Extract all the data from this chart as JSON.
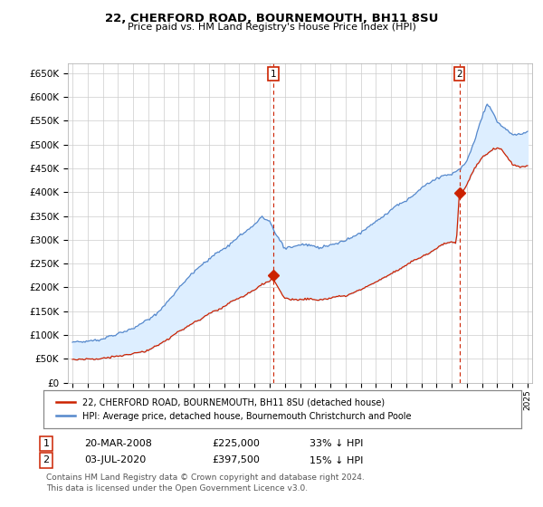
{
  "title": "22, CHERFORD ROAD, BOURNEMOUTH, BH11 8SU",
  "subtitle": "Price paid vs. HM Land Registry's House Price Index (HPI)",
  "ylim": [
    0,
    670000
  ],
  "yticks": [
    0,
    50000,
    100000,
    150000,
    200000,
    250000,
    300000,
    350000,
    400000,
    450000,
    500000,
    550000,
    600000,
    650000
  ],
  "ytick_labels": [
    "£0",
    "£50K",
    "£100K",
    "£150K",
    "£200K",
    "£250K",
    "£300K",
    "£350K",
    "£400K",
    "£450K",
    "£500K",
    "£550K",
    "£600K",
    "£650K"
  ],
  "hpi_color": "#5588cc",
  "hpi_fill_color": "#ddeeff",
  "price_color": "#cc2200",
  "grid_color": "#cccccc",
  "bg_color": "#ffffff",
  "legend_label_red": "22, CHERFORD ROAD, BOURNEMOUTH, BH11 8SU (detached house)",
  "legend_label_blue": "HPI: Average price, detached house, Bournemouth Christchurch and Poole",
  "transaction1_date": "20-MAR-2008",
  "transaction1_price": "£225,000",
  "transaction1_hpi": "33% ↓ HPI",
  "transaction2_date": "03-JUL-2020",
  "transaction2_price": "£397,500",
  "transaction2_hpi": "15% ↓ HPI",
  "footer": "Contains HM Land Registry data © Crown copyright and database right 2024.\nThis data is licensed under the Open Government Licence v3.0.",
  "xtick_start": 1995,
  "xtick_end": 2025,
  "t1_x": 2008.22,
  "t1_y": 225000,
  "t2_x": 2020.5,
  "t2_y": 397500
}
